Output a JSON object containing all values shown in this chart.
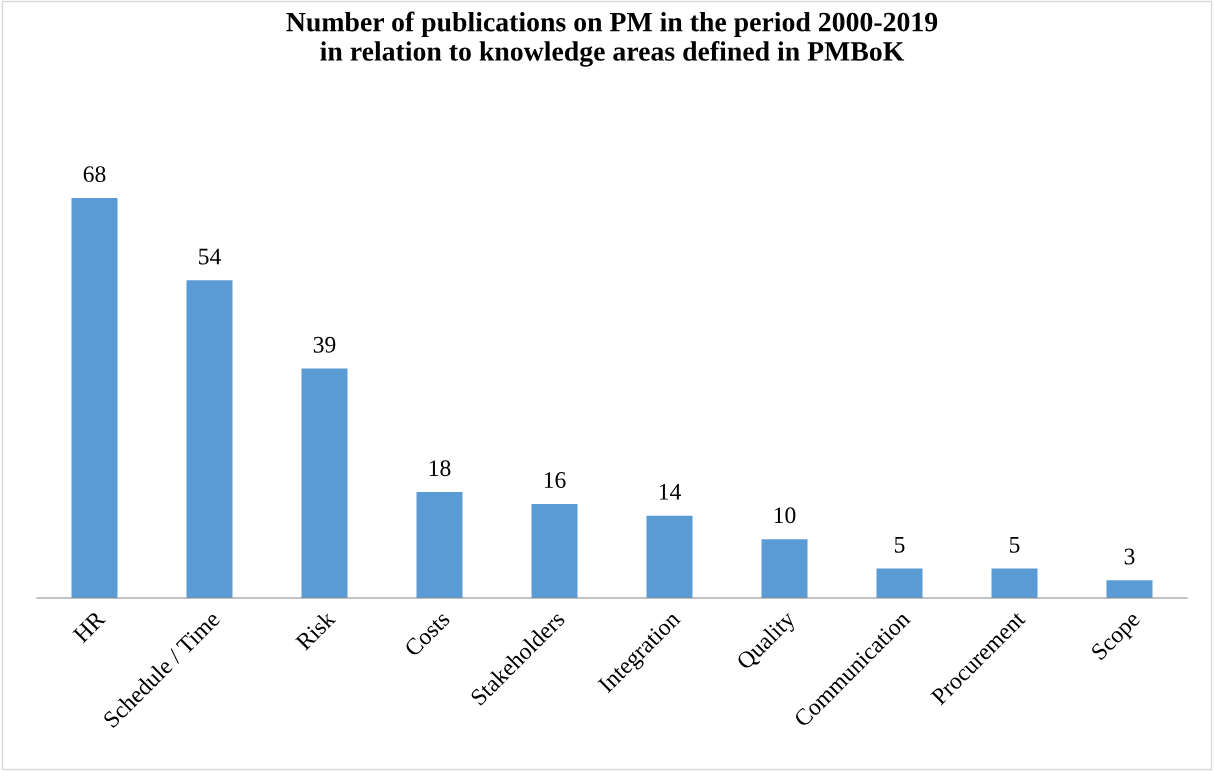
{
  "chart_data": {
    "type": "bar",
    "title": "Number of publications on PM in the period 2000-2019\nin relation to knowledge areas defined in PMBoK",
    "categories": [
      "HR",
      "Schedule / Time",
      "Risk",
      "Costs",
      "Stakeholders",
      "Integration",
      "Quality",
      "Communication",
      "Procurement",
      "Scope"
    ],
    "values": [
      68,
      54,
      39,
      18,
      16,
      14,
      10,
      5,
      5,
      3
    ],
    "color": "#5b9bd5",
    "data_labels": true,
    "grid": false,
    "legend": false
  }
}
